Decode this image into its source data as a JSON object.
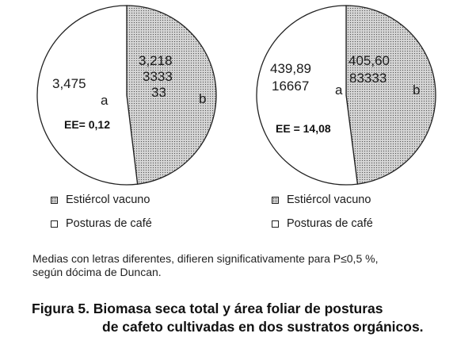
{
  "chart_data": [
    {
      "type": "pie",
      "slices": [
        {
          "label": "Estiércol vacuno",
          "value": 3.218,
          "value_text_lines": [
            "3,218",
            "3333",
            "33"
          ],
          "letter": "b",
          "pattern": "dotted"
        },
        {
          "label": "Posturas de café",
          "value": 3.475,
          "value_text_lines": [
            "3,475"
          ],
          "letter": "a",
          "pattern": "plain"
        }
      ],
      "annotation": "EE= 0,12"
    },
    {
      "type": "pie",
      "slices": [
        {
          "label": "Estiércol vacuno",
          "value": 405.6,
          "value_text_lines": [
            "405,60",
            "83333"
          ],
          "letter": "b",
          "pattern": "dotted"
        },
        {
          "label": "Posturas de café",
          "value": 439.89,
          "value_text_lines": [
            "439,89",
            "16667"
          ],
          "letter": "a",
          "pattern": "plain"
        }
      ],
      "annotation": "EE = 14,08"
    }
  ],
  "legends": [
    {
      "items": [
        {
          "label": "Estiércol vacuno",
          "pattern": "dotted"
        },
        {
          "label": "Posturas de café",
          "pattern": "plain"
        }
      ]
    },
    {
      "items": [
        {
          "label": "Estiércol vacuno",
          "pattern": "dotted"
        },
        {
          "label": "Posturas de café",
          "pattern": "plain"
        }
      ]
    }
  ],
  "note": {
    "line1": "Medias con letras diferentes, difieren significativamente para P≤0,5 %,",
    "line2": "según dócima de Duncan."
  },
  "caption": {
    "line1": "Figura 5. Biomasa seca total y área foliar de posturas",
    "rest": "de cafeto cultivadas en dos sustratos orgánicos."
  },
  "colors": {
    "dotted_fill": "#d6d6d6",
    "dot": "#555555",
    "outline": "#222222",
    "plain_fill": "#ffffff"
  }
}
